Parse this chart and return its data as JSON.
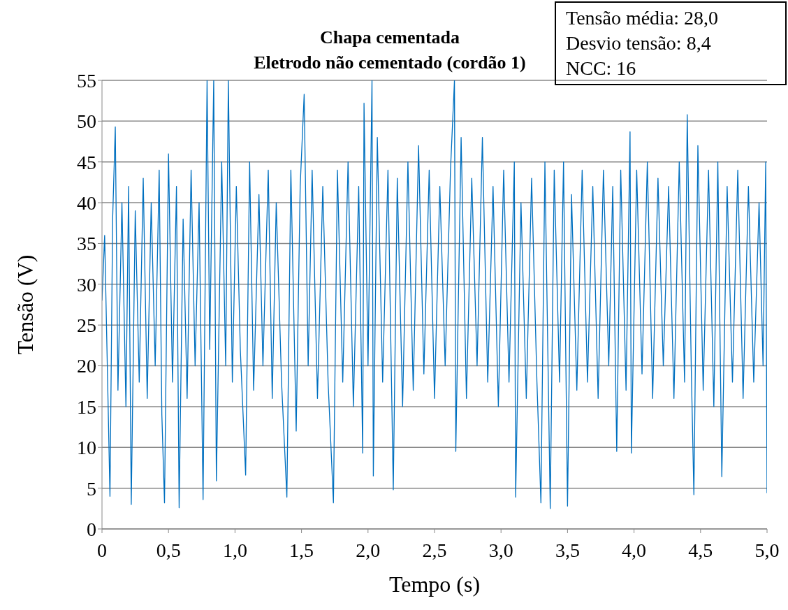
{
  "chart_data": {
    "type": "line",
    "title": "Chapa cementada",
    "subtitle": "Eletrodo não cementado (cordão 1)",
    "xlabel": "Tempo (s)",
    "ylabel": "Tensão (V)",
    "annotations": [
      "Tensão média: 28,0",
      "Desvio tensão: 8,4",
      "NCC: 16"
    ],
    "x": [
      0,
      0.02,
      0.04,
      0.06,
      0.08,
      0.1,
      0.12,
      0.15,
      0.18,
      0.2,
      0.22,
      0.25,
      0.28,
      0.31,
      0.34,
      0.37,
      0.4,
      0.43,
      0.45,
      0.47,
      0.5,
      0.53,
      0.56,
      0.58,
      0.61,
      0.64,
      0.67,
      0.7,
      0.73,
      0.76,
      0.79,
      0.81,
      0.84,
      0.86,
      0.9,
      0.93,
      0.95,
      0.98,
      1.01,
      1.04,
      1.08,
      1.11,
      1.14,
      1.18,
      1.21,
      1.25,
      1.28,
      1.31,
      1.35,
      1.39,
      1.42,
      1.46,
      1.49,
      1.52,
      1.55,
      1.58,
      1.62,
      1.66,
      1.7,
      1.74,
      1.77,
      1.81,
      1.85,
      1.89,
      1.93,
      1.96,
      1.97,
      2,
      2.03,
      2.04,
      2.07,
      2.11,
      2.15,
      2.19,
      2.22,
      2.26,
      2.3,
      2.34,
      2.38,
      2.42,
      2.46,
      2.5,
      2.54,
      2.58,
      2.62,
      2.65,
      2.66,
      2.7,
      2.74,
      2.78,
      2.82,
      2.86,
      2.9,
      2.94,
      2.98,
      3.02,
      3.06,
      3.1,
      3.11,
      3.15,
      3.19,
      3.23,
      3.27,
      3.3,
      3.33,
      3.37,
      3.4,
      3.44,
      3.47,
      3.5,
      3.53,
      3.57,
      3.61,
      3.65,
      3.69,
      3.73,
      3.77,
      3.81,
      3.84,
      3.87,
      3.9,
      3.94,
      3.97,
      3.98,
      4.02,
      4.06,
      4.1,
      4.14,
      4.18,
      4.22,
      4.26,
      4.3,
      4.34,
      4.38,
      4.4,
      4.43,
      4.45,
      4.48,
      4.52,
      4.56,
      4.6,
      4.63,
      4.66,
      4.7,
      4.74,
      4.78,
      4.82,
      4.86,
      4.9,
      4.94,
      4.97,
      4.99,
      5
    ],
    "series": [
      {
        "color": "#0070c0",
        "values": [
          28,
          36,
          20,
          4,
          38,
          49.3,
          17,
          40,
          15,
          42,
          3,
          39,
          18,
          43,
          16,
          40,
          20,
          44,
          14,
          3.2,
          46,
          18,
          42,
          2.6,
          38,
          16,
          44,
          20,
          40,
          3.6,
          55,
          22,
          55,
          5.9,
          45,
          20,
          55,
          18,
          42,
          22,
          6.6,
          45,
          17,
          41,
          20,
          44,
          16,
          40,
          18,
          3.9,
          44,
          12,
          42,
          53.3,
          20,
          44,
          16,
          42,
          18,
          3.2,
          44,
          18,
          45,
          15,
          42,
          9.3,
          52.2,
          20,
          55,
          6.5,
          48,
          18,
          44,
          4.8,
          43,
          15,
          45,
          17,
          47,
          19,
          44,
          16,
          42,
          20,
          44,
          55,
          9.5,
          48,
          16,
          43,
          20,
          48,
          18,
          42,
          15,
          44,
          18,
          45,
          3.9,
          40,
          16,
          43,
          18,
          3.2,
          45,
          2.5,
          44,
          18,
          45,
          2.8,
          41,
          17,
          44,
          18,
          42,
          16,
          44,
          20,
          42,
          9.5,
          44,
          17,
          48.7,
          9.3,
          44,
          19,
          45,
          16,
          43,
          20,
          42,
          16,
          45,
          18,
          50.8,
          20,
          4.2,
          47,
          17,
          44,
          15,
          45,
          6.4,
          42,
          18,
          44,
          16,
          42,
          18,
          40,
          20,
          45,
          4.4
        ]
      }
    ],
    "xlim": [
      0,
      5
    ],
    "ylim": [
      0,
      55
    ],
    "xticks": [
      0,
      {
        "value": 0.5,
        "label": "0,5"
      },
      {
        "value": 1,
        "label": "1,0"
      },
      {
        "value": 1.5,
        "label": "1,5"
      },
      {
        "value": 2,
        "label": "2,0"
      },
      {
        "value": 2.5,
        "label": "2,5"
      },
      {
        "value": 3,
        "label": "3,0"
      },
      {
        "value": 3.5,
        "label": "3,5"
      },
      {
        "value": 4,
        "label": "4,0"
      },
      {
        "value": 4.5,
        "label": "4,5"
      },
      {
        "value": 5,
        "label": "5,0"
      }
    ],
    "yticks": [
      0,
      5,
      10,
      15,
      20,
      25,
      30,
      35,
      40,
      45,
      50,
      55
    ],
    "grid": "y",
    "line_style": "solid"
  }
}
